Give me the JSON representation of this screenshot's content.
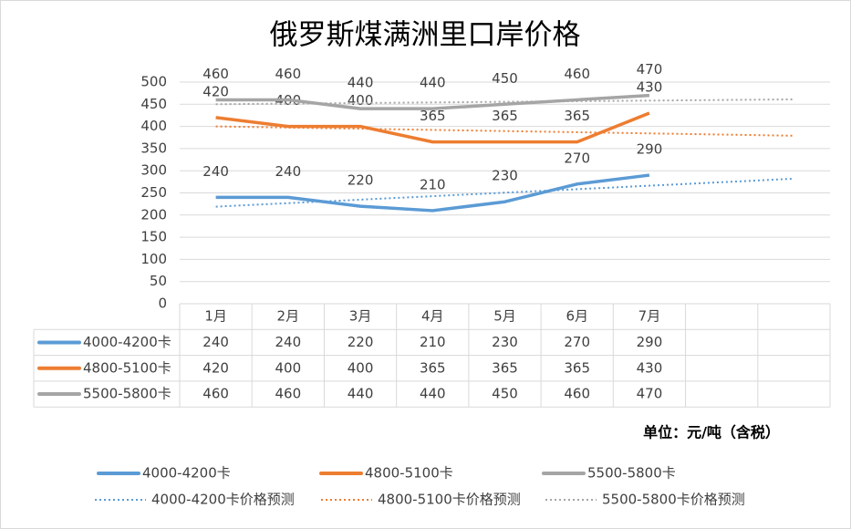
{
  "chart_data": {
    "type": "line",
    "title": "俄罗斯煤满洲里口岸价格",
    "categories": [
      "1月",
      "2月",
      "3月",
      "4月",
      "5月",
      "6月",
      "7月",
      null,
      null
    ],
    "series": [
      {
        "name": "4000-4200卡",
        "color": "#5b9bd5",
        "values": [
          240,
          240,
          220,
          210,
          230,
          270,
          290,
          null,
          null
        ]
      },
      {
        "name": "4800-5100卡",
        "color": "#ed7d31",
        "values": [
          420,
          400,
          400,
          365,
          365,
          365,
          430,
          null,
          null
        ]
      },
      {
        "name": "5500-5800卡",
        "color": "#a5a5a5",
        "values": [
          460,
          460,
          440,
          440,
          450,
          460,
          470,
          null,
          null
        ]
      }
    ],
    "trendlines": [
      {
        "name": "4000-4200卡价格预测",
        "color": "#5b9bd5",
        "values": [
          219,
          282
        ]
      },
      {
        "name": "4800-5100卡价格预测",
        "color": "#ed7d31",
        "values": [
          400,
          379
        ]
      },
      {
        "name": "5500-5800卡价格预测",
        "color": "#a5a5a5",
        "values": [
          450,
          461
        ]
      }
    ],
    "unit_note": "单位：元/吨（含税）",
    "ylim": [
      0,
      500
    ],
    "yticks": [
      0,
      50,
      100,
      150,
      200,
      250,
      300,
      350,
      400,
      450,
      500
    ],
    "grid": true
  }
}
